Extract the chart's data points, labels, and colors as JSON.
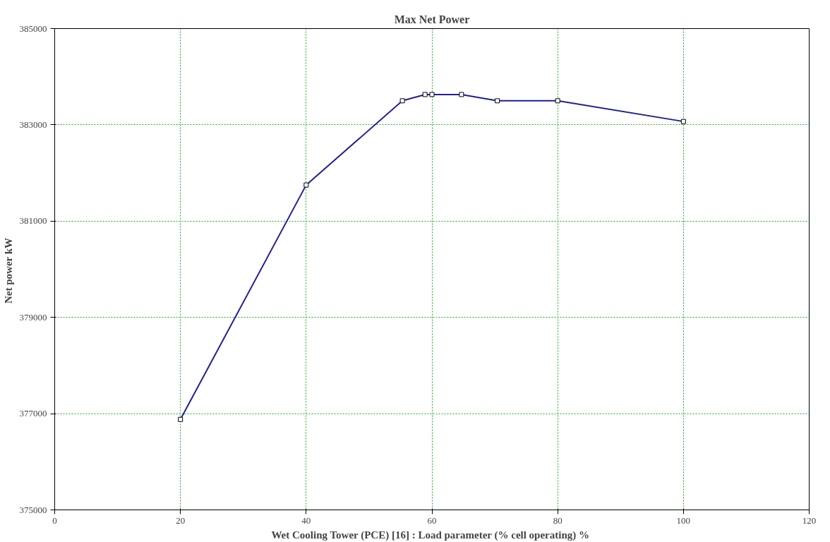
{
  "chart_data": {
    "type": "line",
    "title": "Max Net Power",
    "xlabel": "Wet Cooling Tower (PCE) [16] : Load parameter (% cell operating)  %",
    "ylabel": "Net power  kW",
    "x": [
      20,
      40,
      55.3,
      58.9,
      60,
      64.7,
      70.4,
      80,
      100
    ],
    "series": [
      {
        "color": "#1f1f9a",
        "values": [
          376880,
          381750,
          383500,
          383630,
          383630,
          383630,
          383500,
          383500,
          383070
        ]
      }
    ],
    "xlim": [
      0,
      120
    ],
    "xticks": [
      0,
      20,
      40,
      60,
      80,
      100,
      120
    ],
    "ylim": [
      375000,
      385000
    ],
    "yticks": [
      375000,
      377000,
      379000,
      381000,
      383000,
      385000
    ],
    "grid": true,
    "marker": "square",
    "line_style": "solid"
  }
}
